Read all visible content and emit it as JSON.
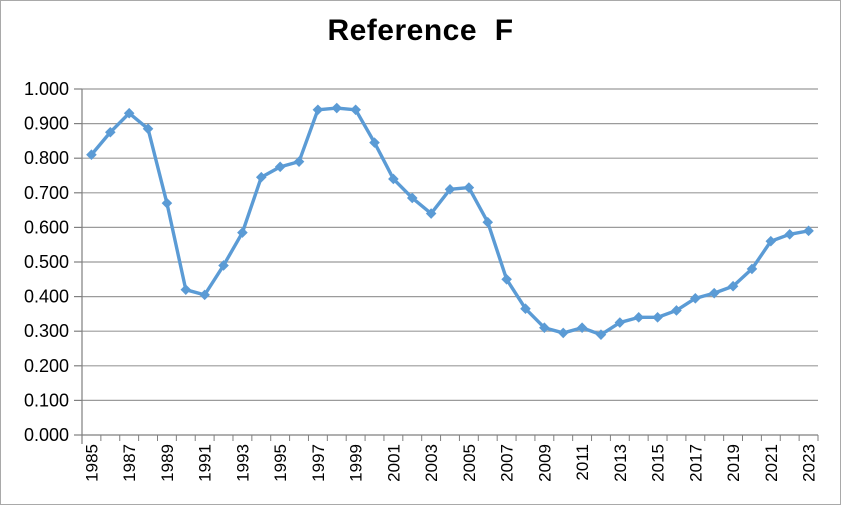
{
  "chart_data": {
    "type": "line",
    "title": "Reference  F",
    "xlabel": "",
    "ylabel": "",
    "x": [
      1985,
      1986,
      1987,
      1988,
      1989,
      1990,
      1991,
      1992,
      1993,
      1994,
      1995,
      1996,
      1997,
      1998,
      1999,
      2000,
      2001,
      2002,
      2003,
      2004,
      2005,
      2006,
      2007,
      2008,
      2009,
      2010,
      2011,
      2012,
      2013,
      2014,
      2015,
      2016,
      2017,
      2018,
      2019,
      2020,
      2021,
      2022,
      2023
    ],
    "series": [
      {
        "name": "Reference F",
        "values": [
          0.81,
          0.875,
          0.93,
          0.885,
          0.67,
          0.42,
          0.405,
          0.49,
          0.585,
          0.745,
          0.775,
          0.79,
          0.94,
          0.945,
          0.94,
          0.845,
          0.74,
          0.685,
          0.64,
          0.71,
          0.715,
          0.615,
          0.45,
          0.365,
          0.31,
          0.295,
          0.31,
          0.29,
          0.325,
          0.34,
          0.34,
          0.36,
          0.395,
          0.41,
          0.43,
          0.48,
          0.56,
          0.58,
          0.59
        ]
      }
    ],
    "ylim": [
      0.0,
      1.0
    ],
    "ytick_labels": [
      "1.000",
      "0.900",
      "0.800",
      "0.700",
      "0.600",
      "0.500",
      "0.400",
      "0.300",
      "0.200",
      "0.100",
      "0.000"
    ],
    "xtick_labels": [
      "1985",
      "1987",
      "1989",
      "1991",
      "1993",
      "1995",
      "1997",
      "1999",
      "2001",
      "2003",
      "2005",
      "2007",
      "2009",
      "2011",
      "2013",
      "2015",
      "2017",
      "2019",
      "2021",
      "2023"
    ],
    "grid": "horizontal",
    "legend": "none",
    "marker": "diamond",
    "colors": {
      "line": "#5b9bd5",
      "marker": "#5b9bd5",
      "gridline": "#9b9b9b",
      "axis": "#7f7f7f",
      "tick_label": "#000000",
      "title": "#000000",
      "background": "#ffffff"
    }
  }
}
